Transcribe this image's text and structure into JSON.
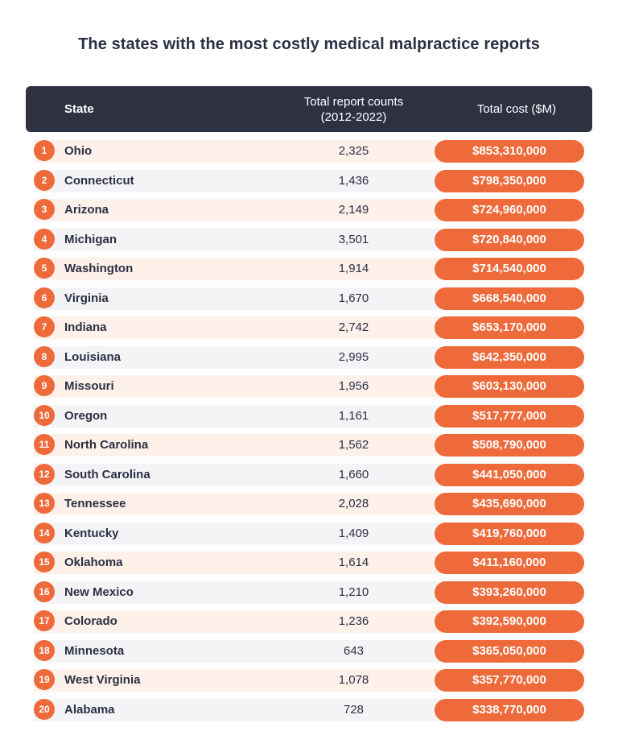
{
  "chart_data": {
    "type": "table",
    "title": "The states with the most costly medical malpractice reports",
    "columns": {
      "state": "State",
      "counts_line1": "Total report counts",
      "counts_line2": "(2012-2022)",
      "cost": "Total cost ($M)"
    },
    "rows": [
      {
        "rank": "1",
        "state": "Ohio",
        "count": "2,325",
        "cost": "$853,310,000"
      },
      {
        "rank": "2",
        "state": "Connecticut",
        "count": "1,436",
        "cost": "$798,350,000"
      },
      {
        "rank": "3",
        "state": "Arizona",
        "count": "2,149",
        "cost": "$724,960,000"
      },
      {
        "rank": "4",
        "state": "Michigan",
        "count": "3,501",
        "cost": "$720,840,000"
      },
      {
        "rank": "5",
        "state": "Washington",
        "count": "1,914",
        "cost": "$714,540,000"
      },
      {
        "rank": "6",
        "state": "Virginia",
        "count": "1,670",
        "cost": "$668,540,000"
      },
      {
        "rank": "7",
        "state": "Indiana",
        "count": "2,742",
        "cost": "$653,170,000"
      },
      {
        "rank": "8",
        "state": "Louisiana",
        "count": "2,995",
        "cost": "$642,350,000"
      },
      {
        "rank": "9",
        "state": "Missouri",
        "count": "1,956",
        "cost": "$603,130,000"
      },
      {
        "rank": "10",
        "state": "Oregon",
        "count": "1,161",
        "cost": "$517,777,000"
      },
      {
        "rank": "11",
        "state": "North Carolina",
        "count": "1,562",
        "cost": "$508,790,000"
      },
      {
        "rank": "12",
        "state": "South Carolina",
        "count": "1,660",
        "cost": "$441,050,000"
      },
      {
        "rank": "13",
        "state": "Tennessee",
        "count": "2,028",
        "cost": "$435,690,000"
      },
      {
        "rank": "14",
        "state": "Kentucky",
        "count": "1,409",
        "cost": "$419,760,000"
      },
      {
        "rank": "15",
        "state": "Oklahoma",
        "count": "1,614",
        "cost": "$411,160,000"
      },
      {
        "rank": "16",
        "state": "New Mexico",
        "count": "1,210",
        "cost": "$393,260,000"
      },
      {
        "rank": "17",
        "state": "Colorado",
        "count": "1,236",
        "cost": "$392,590,000"
      },
      {
        "rank": "18",
        "state": "Minnesota",
        "count": "643",
        "cost": "$365,050,000"
      },
      {
        "rank": "19",
        "state": "West Virginia",
        "count": "1,078",
        "cost": "$357,770,000"
      },
      {
        "rank": "20",
        "state": "Alabama",
        "count": "728",
        "cost": "$338,770,000"
      }
    ]
  },
  "colors": {
    "header_bg": "#2d3142",
    "accent": "#ee6a3a",
    "row_odd": "#fdf1ea",
    "row_even": "#f4f4f6"
  }
}
